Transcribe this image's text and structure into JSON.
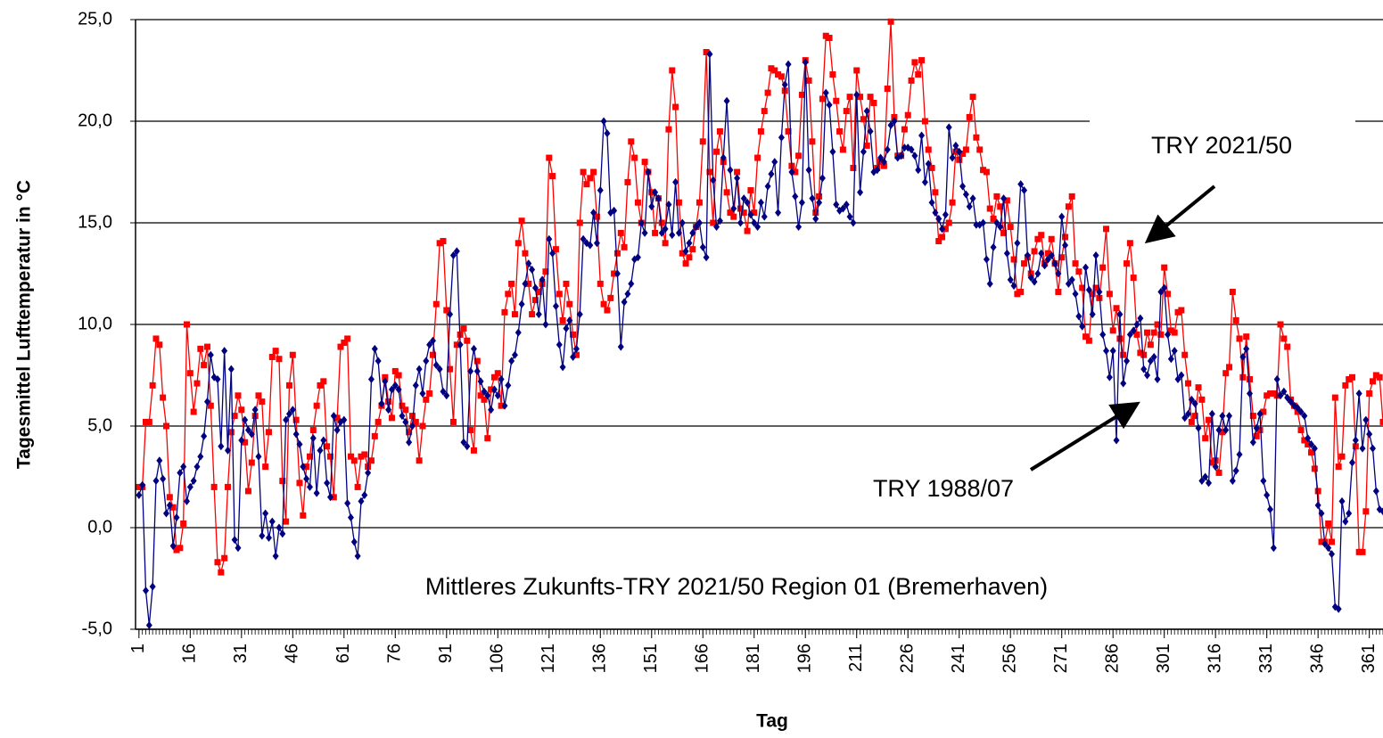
{
  "chart_data": {
    "type": "line",
    "y_label": "Tagesmittel Lufttemperatur in °C",
    "x_label": "Tag",
    "annotations": [
      "TRY 2021/50",
      "TRY 1988/07",
      "Mittleres Zukunfts-TRY 2021/50 Region 01 (Bremerhaven)"
    ],
    "xlim": [
      0,
      365
    ],
    "xticks": [
      1,
      16,
      31,
      46,
      61,
      76,
      91,
      106,
      121,
      136,
      151,
      166,
      181,
      196,
      211,
      226,
      241,
      256,
      271,
      286,
      301,
      316,
      331,
      346,
      361
    ],
    "ylim": [
      -5,
      25
    ],
    "yticks": [
      {
        "value": -5,
        "label": "-5,0"
      },
      {
        "value": 0,
        "label": "0,0"
      },
      {
        "value": 5,
        "label": "5,0"
      },
      {
        "value": 10,
        "label": "10,0"
      },
      {
        "value": 15,
        "label": "15,0"
      },
      {
        "value": 20,
        "label": "20,0"
      },
      {
        "value": 25,
        "label": "25,0"
      }
    ],
    "grid": true,
    "x": [
      1,
      2,
      3,
      4,
      5,
      6,
      7,
      8,
      9,
      10,
      11,
      12,
      13,
      14,
      15,
      16,
      17,
      18,
      19,
      20,
      21,
      22,
      23,
      24,
      25,
      26,
      27,
      28,
      29,
      30,
      31,
      32,
      33,
      34,
      35,
      36,
      37,
      38,
      39,
      40,
      41,
      42,
      43,
      44,
      45,
      46,
      47,
      48,
      49,
      50,
      51,
      52,
      53,
      54,
      55,
      56,
      57,
      58,
      59,
      60,
      61,
      62,
      63,
      64,
      65,
      66,
      67,
      68,
      69,
      70,
      71,
      72,
      73,
      74,
      75,
      76,
      77,
      78,
      79,
      80,
      81,
      82,
      83,
      84,
      85,
      86,
      87,
      88,
      89,
      90,
      91,
      92,
      93,
      94,
      95,
      96,
      97,
      98,
      99,
      100,
      101,
      102,
      103,
      104,
      105,
      106,
      107,
      108,
      109,
      110,
      111,
      112,
      113,
      114,
      115,
      116,
      117,
      118,
      119,
      120,
      121,
      122,
      123,
      124,
      125,
      126,
      127,
      128,
      129,
      130,
      131,
      132,
      133,
      134,
      135,
      136,
      137,
      138,
      139,
      140,
      141,
      142,
      143,
      144,
      145,
      146,
      147,
      148,
      149,
      150,
      151,
      152,
      153,
      154,
      155,
      156,
      157,
      158,
      159,
      160,
      161,
      162,
      163,
      164,
      165,
      166,
      167,
      168,
      169,
      170,
      171,
      172,
      173,
      174,
      175,
      176,
      177,
      178,
      179,
      180,
      181,
      182,
      183,
      184,
      185,
      186,
      187,
      188,
      189,
      190,
      191,
      192,
      193,
      194,
      195,
      196,
      197,
      198,
      199,
      200,
      201,
      202,
      203,
      204,
      205,
      206,
      207,
      208,
      209,
      210,
      211,
      212,
      213,
      214,
      215,
      216,
      217,
      218,
      219,
      220,
      221,
      222,
      223,
      224,
      225,
      226,
      227,
      228,
      229,
      230,
      231,
      232,
      233,
      234,
      235,
      236,
      237,
      238,
      239,
      240,
      241,
      242,
      243,
      244,
      245,
      246,
      247,
      248,
      249,
      250,
      251,
      252,
      253,
      254,
      255,
      256,
      257,
      258,
      259,
      260,
      261,
      262,
      263,
      264,
      265,
      266,
      267,
      268,
      269,
      270,
      271,
      272,
      273,
      274,
      275,
      276,
      277,
      278,
      279,
      280,
      281,
      282,
      283,
      284,
      285,
      286,
      287,
      288,
      289,
      290,
      291,
      292,
      293,
      294,
      295,
      296,
      297,
      298,
      299,
      300,
      301,
      302,
      303,
      304,
      305,
      306,
      307,
      308,
      309,
      310,
      311,
      312,
      313,
      314,
      315,
      316,
      317,
      318,
      319,
      320,
      321,
      322,
      323,
      324,
      325,
      326,
      327,
      328,
      329,
      330,
      331,
      332,
      333,
      334,
      335,
      336,
      337,
      338,
      339,
      340,
      341,
      342,
      343,
      344,
      345,
      346,
      347,
      348,
      349,
      350,
      351,
      352,
      353,
      354,
      355,
      356,
      357,
      358,
      359,
      360,
      361,
      362,
      363,
      364,
      365
    ],
    "series": [
      {
        "name": "TRY 2021/50",
        "color": "#ff0000",
        "marker": "square",
        "values": [
          2,
          2,
          5.2,
          5.2,
          7,
          9.3,
          9,
          6.4,
          5,
          1.5,
          1,
          -1.1,
          -1,
          0.2,
          10,
          7.6,
          5.7,
          7.1,
          8.8,
          8,
          8.9,
          6,
          2,
          -1.7,
          -2.2,
          -1.5,
          2,
          4.7,
          5.5,
          6.5,
          5.8,
          4.2,
          1.8,
          3.2,
          5.5,
          6.5,
          6.2,
          3,
          4.7,
          8.4,
          8.7,
          8.3,
          2.3,
          0.3,
          7,
          8.5,
          5.3,
          2.2,
          0.6,
          3,
          3.5,
          4.8,
          6,
          7,
          7.2,
          4,
          3.5,
          1.5,
          5.4,
          8.9,
          9.1,
          9.3,
          3.5,
          3.3,
          2,
          3.5,
          3.6,
          3,
          3.3,
          4.5,
          5.2,
          6,
          7.4,
          6.2,
          5.4,
          7.7,
          7.5,
          6,
          5.8,
          4.7,
          5.5,
          5.2,
          3.3,
          5,
          6.3,
          6.6,
          8.5,
          11,
          14,
          14.1,
          10.7,
          7.8,
          5.2,
          9,
          9.5,
          9.8,
          9.2,
          4.8,
          3.8,
          8.2,
          6.5,
          6.3,
          4.4,
          6.8,
          7.4,
          7.6,
          6,
          10.6,
          11.5,
          12,
          10.5,
          14,
          15.1,
          13.5,
          12,
          10.5,
          11.2,
          11.6,
          12,
          12.6,
          18.2,
          17.3,
          13.7,
          11.5,
          10.2,
          12,
          11,
          9.5,
          8.5,
          15,
          17.5,
          16.9,
          17.2,
          17.5,
          15.3,
          12,
          11,
          10.7,
          11.3,
          12.5,
          13.5,
          14.5,
          13.8,
          17,
          19,
          18.2,
          16,
          15,
          18,
          17.5,
          16.5,
          14.5,
          16.2,
          15,
          14,
          19.6,
          22.5,
          20.7,
          16,
          13.5,
          13,
          13.3,
          13.7,
          14.8,
          16,
          19,
          23.4,
          17.5,
          15,
          18.5,
          19.5,
          18,
          16.5,
          15.5,
          15.3,
          17.5,
          15.7,
          15.5,
          14.6,
          16.6,
          15.5,
          18.2,
          19.5,
          20.5,
          21.4,
          22.6,
          22.5,
          22.3,
          22.2,
          21.5,
          19.5,
          17.8,
          17.5,
          18.3,
          21.3,
          23,
          22,
          19,
          15.5,
          16.3,
          21.1,
          24.2,
          24.1,
          22.3,
          21,
          19.5,
          18.6,
          20.5,
          21.2,
          17.7,
          22.5,
          21.2,
          20.1,
          18.8,
          21.2,
          20.9,
          17.7,
          18,
          17.8,
          21.6,
          24.9,
          20.2,
          18.3,
          18.3,
          19.6,
          20.3,
          22,
          22.9,
          22.3,
          23,
          20,
          18.6,
          17.7,
          16.5,
          14.1,
          14.3,
          14.7,
          15,
          16,
          18.5,
          18.1,
          18.4,
          18.6,
          20.2,
          21.2,
          19.2,
          18.6,
          17.6,
          17.5,
          15.7,
          15.2,
          16.3,
          15.8,
          14.5,
          16.1,
          14.8,
          13.2,
          11.5,
          11.6,
          13,
          13.3,
          12.5,
          13.6,
          14.2,
          14.4,
          13,
          13.5,
          14.2,
          13,
          11.6,
          13.3,
          14.3,
          15.8,
          16.3,
          13,
          12.6,
          11.8,
          9.4,
          9.2,
          11.5,
          11.8,
          11.3,
          12.8,
          14.7,
          11.5,
          9.7,
          10.8,
          9.3,
          8.5,
          13,
          14,
          12.3,
          9.5,
          8.6,
          8.5,
          9.6,
          9,
          9.6,
          10,
          9.5,
          12.8,
          11.5,
          9.7,
          9.6,
          10.6,
          10.7,
          8.5,
          7.1,
          5.2,
          5.5,
          6.9,
          6.3,
          4.4,
          5.3,
          3.2,
          3.3,
          2.7,
          4.7,
          7.6,
          7.9,
          11.6,
          10.2,
          9.3,
          7.4,
          9.4,
          7.3,
          5.5,
          4.5,
          4.8,
          5.7,
          6.5,
          6.6,
          6.6,
          6.5,
          10,
          9.3,
          8.9,
          6.3,
          6,
          5.7,
          4.8,
          4.3,
          4.1,
          3.7,
          2.9,
          1.8,
          -0.7,
          -0.7,
          0.2,
          -0.7,
          6.4,
          3,
          3.5,
          7,
          7.3,
          7.4,
          4,
          -1.2,
          -1.2,
          0.8,
          6.6,
          7.2,
          7.5,
          7.4,
          5.2
        ]
      },
      {
        "name": "TRY 1988/07",
        "color": "#000080",
        "marker": "diamond",
        "values": [
          1.6,
          2.1,
          -3.1,
          -4.8,
          -2.9,
          2.3,
          3.3,
          2.4,
          0.7,
          1.1,
          -0.9,
          0.5,
          2.7,
          3,
          1.3,
          2,
          2.3,
          3,
          3.5,
          4.5,
          6.2,
          8.5,
          7.4,
          7.3,
          4,
          8.7,
          3.8,
          7.8,
          -0.6,
          -1,
          4.3,
          5.3,
          4.8,
          4.6,
          5.8,
          3.5,
          -0.4,
          0.7,
          -0.5,
          0.3,
          -1.4,
          0,
          -0.3,
          5.3,
          5.6,
          5.8,
          4.6,
          4.1,
          3,
          2.4,
          2,
          4.4,
          1.7,
          3.8,
          4.3,
          2.2,
          1.5,
          5.5,
          4.8,
          5.2,
          5.3,
          1.2,
          0.5,
          -0.7,
          -1.4,
          1.3,
          1.6,
          2.7,
          7.3,
          8.8,
          8.2,
          6.1,
          7.2,
          5.8,
          6.8,
          7,
          6.8,
          5.5,
          5.2,
          4.2,
          5,
          7,
          7.8,
          6.6,
          8.2,
          9,
          9.2,
          8,
          7.8,
          6.7,
          6.5,
          10.5,
          13.4,
          13.6,
          9,
          4.2,
          4,
          7.7,
          8.8,
          7.7,
          7.2,
          6.7,
          6.5,
          5.8,
          6.8,
          6.5,
          7.3,
          6,
          7,
          8.2,
          8.5,
          9.6,
          11,
          12,
          13,
          12.7,
          11.8,
          10.5,
          12.2,
          10,
          14.2,
          13.5,
          10.9,
          9,
          7.9,
          9.8,
          10.2,
          8.4,
          8.8,
          10.5,
          14.2,
          14,
          13.9,
          15.5,
          14,
          16.6,
          20,
          19.4,
          15.5,
          15.6,
          12.5,
          8.9,
          11.1,
          11.5,
          12,
          13.2,
          13.3,
          15,
          14.5,
          17.5,
          15.8,
          16.5,
          16.2,
          14.5,
          14.7,
          15.9,
          14.4,
          17,
          14.5,
          15,
          13.6,
          14,
          14.5,
          14.8,
          15,
          13.8,
          13.3,
          23.3,
          17.1,
          14.8,
          15.1,
          18.2,
          21,
          17.6,
          15.7,
          17.2,
          15,
          16.2,
          16,
          15.4,
          15,
          14.8,
          16,
          15.3,
          16.8,
          17.4,
          18,
          15.5,
          19.2,
          21.8,
          22.8,
          17.5,
          16.3,
          14.8,
          16,
          22.9,
          17.6,
          16.2,
          15.2,
          16,
          17.2,
          21.4,
          20.8,
          18.5,
          15.9,
          15.6,
          15.7,
          15.9,
          15.3,
          15,
          21.3,
          16.5,
          18.5,
          20.5,
          19.5,
          17.5,
          17.6,
          18.2,
          18,
          18.6,
          19.8,
          20,
          18.2,
          18.3,
          18.7,
          18.7,
          18.6,
          18.3,
          17.6,
          19.3,
          17,
          17.9,
          16,
          15.5,
          15.2,
          14.7,
          15.4,
          19.7,
          18.2,
          18.8,
          18.5,
          16.8,
          16.4,
          15.8,
          16.2,
          14.9,
          14.9,
          15,
          13.2,
          12,
          13.8,
          15,
          14.8,
          16.2,
          13.5,
          12.2,
          11.9,
          14,
          16.9,
          16.6,
          13.4,
          12.3,
          12.1,
          12.5,
          13.5,
          12.9,
          13.2,
          13.4,
          13,
          12.5,
          15.3,
          13.9,
          12,
          12.2,
          11.5,
          10.4,
          9.9,
          12.8,
          11.7,
          10.5,
          13.4,
          11.6,
          9.5,
          8.7,
          7.4,
          8.7,
          4.3,
          10.5,
          7.1,
          8.2,
          9.5,
          9.7,
          10,
          10.3,
          7.8,
          7.5,
          8.2,
          8.4,
          7.3,
          11.6,
          11.8,
          9.5,
          8.3,
          8.7,
          7.3,
          7.5,
          5.4,
          5.6,
          6.3,
          6.1,
          4.9,
          2.3,
          2.5,
          2.2,
          5.6,
          3,
          4.8,
          5.5,
          4.8,
          5.5,
          2.3,
          2.8,
          3.6,
          8.4,
          8.8,
          6.6,
          4.2,
          4.9,
          5.6,
          2.3,
          1.6,
          0.9,
          -1,
          7.3,
          6.5,
          6.7,
          6.4,
          6.2,
          6,
          5.9,
          5.7,
          5.5,
          4.4,
          4.1,
          3.9,
          1.1,
          0.7,
          -0.8,
          -1,
          -1.3,
          -3.9,
          -4,
          1.3,
          0.3,
          0.7,
          3.2,
          4.3,
          6.6,
          3.9,
          5.3,
          4.6,
          3.9,
          1.8,
          0.9,
          0.8
        ]
      }
    ]
  }
}
